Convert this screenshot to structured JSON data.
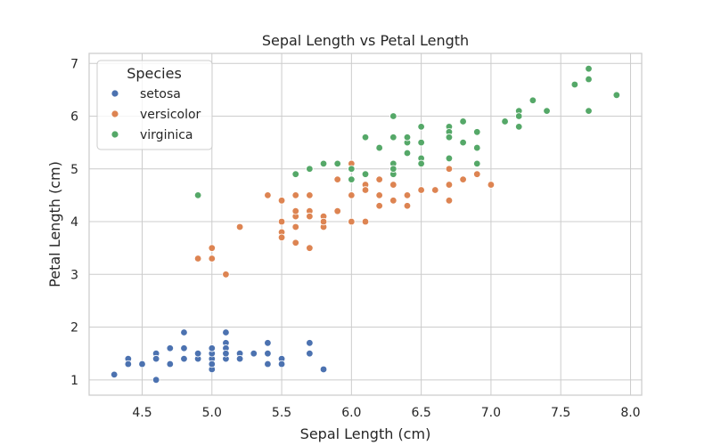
{
  "chart_data": {
    "type": "scatter",
    "title": "Sepal Length vs Petal Length",
    "xlabel": "Sepal Length (cm)",
    "ylabel": "Petal Length (cm)",
    "xlim": [
      4.12,
      8.08
    ],
    "ylim": [
      0.71,
      7.19
    ],
    "xticks": [
      "4.5",
      "5.0",
      "5.5",
      "6.0",
      "6.5",
      "7.0",
      "7.5",
      "8.0"
    ],
    "yticks": [
      "1",
      "2",
      "3",
      "4",
      "5",
      "6",
      "7"
    ],
    "grid": true,
    "legend": {
      "title": "Species",
      "placement": "top-left"
    },
    "series": [
      {
        "name": "setosa",
        "color": "#4c72b0",
        "points": [
          [
            5.1,
            1.4
          ],
          [
            4.9,
            1.4
          ],
          [
            4.7,
            1.3
          ],
          [
            4.6,
            1.5
          ],
          [
            5.0,
            1.4
          ],
          [
            5.4,
            1.7
          ],
          [
            4.6,
            1.4
          ],
          [
            5.0,
            1.5
          ],
          [
            4.4,
            1.4
          ],
          [
            4.9,
            1.5
          ],
          [
            5.4,
            1.5
          ],
          [
            4.8,
            1.6
          ],
          [
            4.8,
            1.4
          ],
          [
            4.3,
            1.1
          ],
          [
            5.8,
            1.2
          ],
          [
            5.7,
            1.5
          ],
          [
            5.1,
            1.7
          ],
          [
            5.7,
            1.7
          ],
          [
            5.1,
            1.5
          ],
          [
            4.6,
            1.0
          ],
          [
            5.1,
            1.9
          ],
          [
            5.0,
            1.6
          ],
          [
            5.2,
            1.5
          ],
          [
            5.2,
            1.4
          ],
          [
            4.7,
            1.6
          ],
          [
            5.5,
            1.4
          ],
          [
            4.9,
            1.5
          ],
          [
            4.4,
            1.3
          ],
          [
            4.5,
            1.3
          ],
          [
            5.0,
            1.6
          ],
          [
            4.8,
            1.9
          ],
          [
            5.3,
            1.5
          ],
          [
            5.0,
            1.2
          ],
          [
            5.5,
            1.3
          ],
          [
            5.0,
            1.3
          ],
          [
            5.1,
            1.6
          ],
          [
            5.4,
            1.3
          ],
          [
            5.1,
            1.5
          ]
        ]
      },
      {
        "name": "versicolor",
        "color": "#dd8452",
        "points": [
          [
            7.0,
            4.7
          ],
          [
            6.4,
            4.5
          ],
          [
            6.9,
            4.9
          ],
          [
            5.5,
            4.0
          ],
          [
            6.5,
            4.6
          ],
          [
            5.7,
            4.5
          ],
          [
            6.3,
            4.7
          ],
          [
            4.9,
            3.3
          ],
          [
            6.6,
            4.6
          ],
          [
            5.2,
            3.9
          ],
          [
            5.0,
            3.5
          ],
          [
            5.9,
            4.2
          ],
          [
            6.0,
            4.0
          ],
          [
            6.1,
            4.7
          ],
          [
            5.6,
            3.6
          ],
          [
            6.7,
            4.4
          ],
          [
            5.6,
            4.5
          ],
          [
            5.8,
            4.1
          ],
          [
            6.2,
            4.5
          ],
          [
            5.6,
            3.9
          ],
          [
            5.9,
            4.8
          ],
          [
            6.1,
            4.0
          ],
          [
            6.3,
            4.9
          ],
          [
            6.4,
            4.3
          ],
          [
            6.8,
            4.8
          ],
          [
            6.7,
            5.0
          ],
          [
            6.0,
            4.5
          ],
          [
            5.7,
            3.5
          ],
          [
            5.5,
            3.8
          ],
          [
            5.5,
            3.7
          ],
          [
            5.8,
            3.9
          ],
          [
            6.0,
            5.1
          ],
          [
            5.4,
            4.5
          ],
          [
            6.7,
            4.7
          ],
          [
            6.3,
            4.4
          ],
          [
            5.6,
            4.1
          ],
          [
            5.5,
            4.4
          ],
          [
            6.1,
            4.6
          ],
          [
            5.8,
            4.0
          ],
          [
            5.0,
            3.3
          ],
          [
            5.6,
            4.2
          ],
          [
            5.7,
            4.2
          ],
          [
            6.2,
            4.3
          ],
          [
            5.1,
            3.0
          ],
          [
            5.7,
            4.1
          ],
          [
            6.0,
            4.8
          ],
          [
            6.2,
            4.8
          ]
        ]
      },
      {
        "name": "virginica",
        "color": "#55a868",
        "points": [
          [
            6.3,
            6.0
          ],
          [
            5.8,
            5.1
          ],
          [
            7.1,
            5.9
          ],
          [
            6.3,
            5.6
          ],
          [
            6.5,
            5.8
          ],
          [
            7.6,
            6.6
          ],
          [
            4.9,
            4.5
          ],
          [
            7.3,
            6.3
          ],
          [
            6.7,
            5.8
          ],
          [
            7.2,
            6.1
          ],
          [
            6.4,
            5.3
          ],
          [
            6.8,
            5.5
          ],
          [
            5.7,
            5.0
          ],
          [
            6.4,
            5.5
          ],
          [
            7.7,
            6.7
          ],
          [
            7.7,
            6.9
          ],
          [
            6.0,
            5.0
          ],
          [
            6.9,
            5.7
          ],
          [
            5.6,
            4.9
          ],
          [
            6.3,
            4.9
          ],
          [
            6.7,
            5.7
          ],
          [
            7.2,
            6.0
          ],
          [
            6.1,
            4.9
          ],
          [
            7.4,
            6.1
          ],
          [
            7.9,
            6.4
          ],
          [
            6.4,
            5.6
          ],
          [
            6.1,
            5.6
          ],
          [
            7.7,
            6.1
          ],
          [
            6.9,
            5.4
          ],
          [
            6.9,
            5.1
          ],
          [
            6.8,
            5.9
          ],
          [
            6.7,
            5.2
          ],
          [
            6.5,
            5.2
          ],
          [
            6.2,
            5.4
          ],
          [
            5.9,
            5.1
          ],
          [
            6.2,
            5.4
          ],
          [
            6.5,
            5.5
          ],
          [
            6.0,
            4.8
          ],
          [
            6.5,
            5.1
          ],
          [
            6.3,
            5.1
          ],
          [
            7.2,
            5.8
          ],
          [
            6.1,
            5.6
          ],
          [
            6.4,
            5.6
          ],
          [
            6.3,
            5.0
          ],
          [
            6.7,
            5.6
          ],
          [
            5.8,
            5.1
          ]
        ]
      }
    ]
  }
}
